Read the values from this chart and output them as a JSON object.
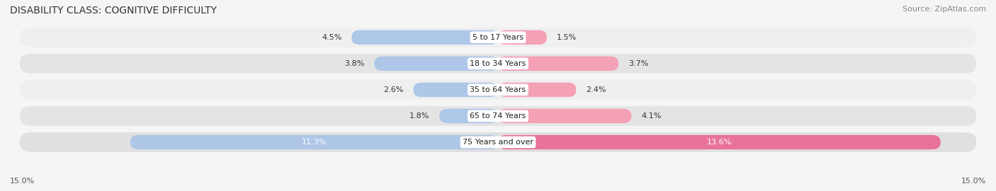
{
  "title": "DISABILITY CLASS: COGNITIVE DIFFICULTY",
  "source": "Source: ZipAtlas.com",
  "categories": [
    "5 to 17 Years",
    "18 to 34 Years",
    "35 to 64 Years",
    "65 to 74 Years",
    "75 Years and over"
  ],
  "male_values": [
    4.5,
    3.8,
    2.6,
    1.8,
    11.3
  ],
  "female_values": [
    1.5,
    3.7,
    2.4,
    4.1,
    13.6
  ],
  "male_color": "#aec6e8",
  "female_color": "#f4a0b5",
  "female_color_last": "#e8729a",
  "max_val": 15.0,
  "bar_height": 0.55,
  "row_bg_colors": [
    "#efefef",
    "#e4e4e4",
    "#efefef",
    "#e4e4e4",
    "#e0e0e0"
  ],
  "axis_label_left": "15.0%",
  "axis_label_right": "15.0%",
  "title_fontsize": 10,
  "source_fontsize": 8,
  "bar_label_fontsize": 8,
  "category_fontsize": 8,
  "legend_fontsize": 9,
  "axis_tick_fontsize": 8
}
